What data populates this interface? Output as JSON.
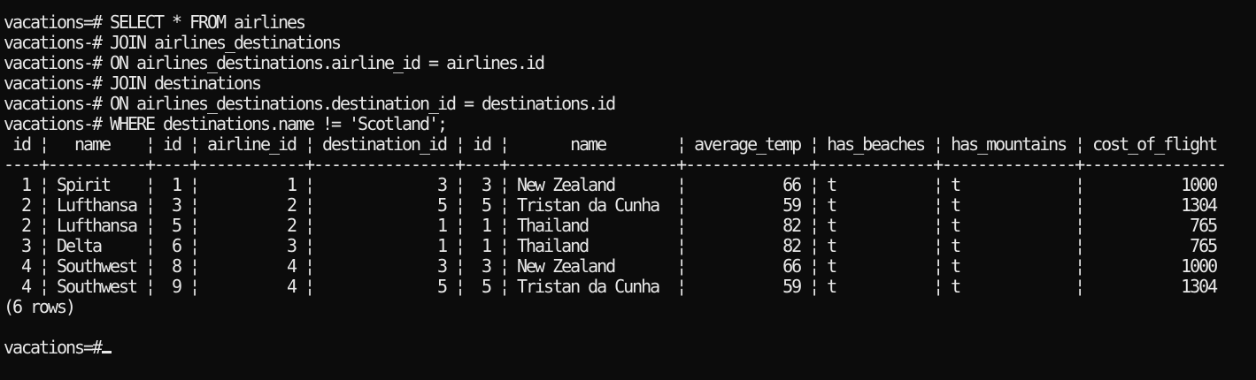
{
  "terminal": {
    "prompt": "vacations=#",
    "command_lines": [
      "vacations=# SELECT * FROM airlines",
      "vacations-# JOIN airlines_destinations",
      "vacations-# ON airlines_destinations.airline_id = airlines.id",
      "vacations-# JOIN destinations",
      "vacations-# ON airlines_destinations.destination_id = destinations.id",
      "vacations-# WHERE destinations.name != 'Scotland';"
    ],
    "result": {
      "header_line": " id ¦   name    ¦ id ¦ airline_id ¦ destination_id ¦ id ¦       name        ¦ average_temp ¦ has_beaches ¦ has_mountains ¦ cost_of_flight",
      "separator_line": "----+-----------+----+------------+----------------+----+-------------------+--------------+-------------+---------------+----------------",
      "columns": [
        "id",
        "name",
        "id",
        "airline_id",
        "destination_id",
        "id",
        "name",
        "average_temp",
        "has_beaches",
        "has_mountains",
        "cost_of_flight"
      ],
      "row_lines": [
        "  1 ¦ Spirit    ¦  1 ¦          1 ¦              3 ¦  3 ¦ New Zealand       ¦           66 ¦ t           ¦ t             ¦           1000",
        "  2 ¦ Lufthansa ¦  3 ¦          2 ¦              5 ¦  5 ¦ Tristan da Cunha  ¦           59 ¦ t           ¦ t             ¦           1304",
        "  2 ¦ Lufthansa ¦  5 ¦          2 ¦              1 ¦  1 ¦ Thailand          ¦           82 ¦ t           ¦ t             ¦            765",
        "  3 ¦ Delta     ¦  6 ¦          3 ¦              1 ¦  1 ¦ Thailand          ¦           82 ¦ t           ¦ t             ¦            765",
        "  4 ¦ Southwest ¦  8 ¦          4 ¦              3 ¦  3 ¦ New Zealand       ¦           66 ¦ t           ¦ t             ¦           1000",
        "  4 ¦ Southwest ¦  9 ¦          4 ¦              5 ¦  5 ¦ Tristan da Cunha  ¦           59 ¦ t           ¦ t             ¦           1304"
      ],
      "rows": [
        [
          "1",
          "Spirit",
          "1",
          "1",
          "3",
          "3",
          "New Zealand",
          "66",
          "t",
          "t",
          "1000"
        ],
        [
          "2",
          "Lufthansa",
          "3",
          "2",
          "5",
          "5",
          "Tristan da Cunha",
          "59",
          "t",
          "t",
          "1304"
        ],
        [
          "2",
          "Lufthansa",
          "5",
          "2",
          "1",
          "1",
          "Thailand",
          "82",
          "t",
          "t",
          "765"
        ],
        [
          "3",
          "Delta",
          "6",
          "3",
          "1",
          "1",
          "Thailand",
          "82",
          "t",
          "t",
          "765"
        ],
        [
          "4",
          "Southwest",
          "8",
          "4",
          "3",
          "3",
          "New Zealand",
          "66",
          "t",
          "t",
          "1000"
        ],
        [
          "4",
          "Southwest",
          "9",
          "4",
          "5",
          "5",
          "Tristan da Cunha",
          "59",
          "t",
          "t",
          "1304"
        ]
      ],
      "row_count": "(6 rows)"
    },
    "blank_line": "",
    "text_color": "#e8e8e8",
    "background_color": "#0c0c0c"
  }
}
